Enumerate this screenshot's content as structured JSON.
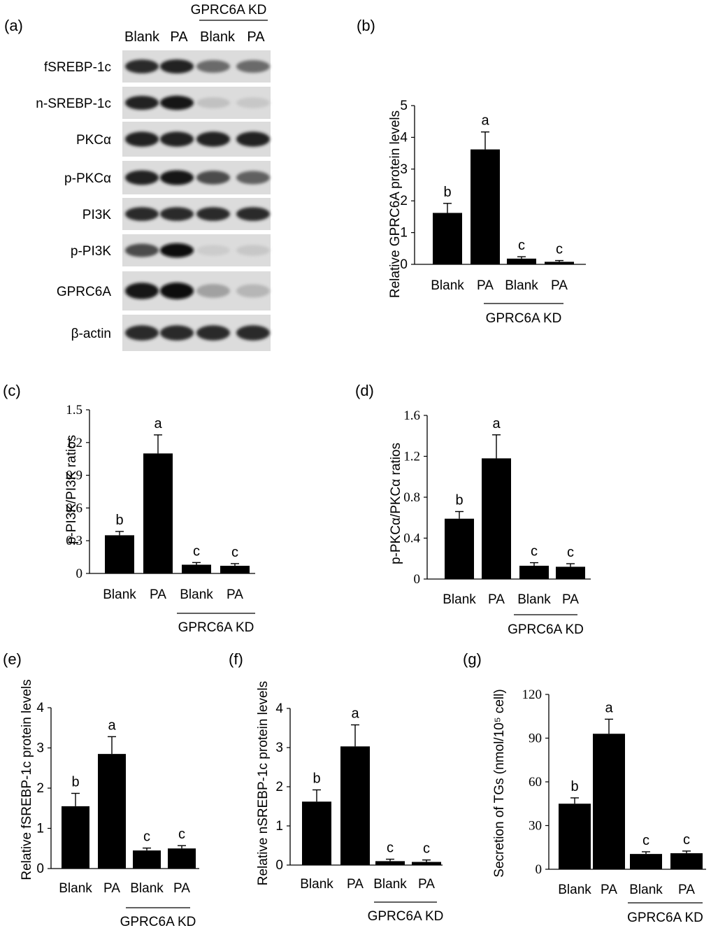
{
  "panel_letters": [
    "(a)",
    "(b)",
    "(c)",
    "(d)",
    "(e)",
    "(f)",
    "(g)"
  ],
  "group_label": "GPRC6A KD",
  "blot": {
    "lane_labels": [
      "Blank",
      "PA",
      "Blank",
      "PA"
    ],
    "rows": [
      {
        "label": "fSREBP-1c",
        "intensity": [
          0.85,
          0.9,
          0.55,
          0.55
        ]
      },
      {
        "label": "n-SREBP-1c",
        "intensity": [
          0.9,
          0.95,
          0.15,
          0.12
        ]
      },
      {
        "label": "PKCα",
        "intensity": [
          0.9,
          0.9,
          0.9,
          0.9
        ]
      },
      {
        "label": "p-PKCα",
        "intensity": [
          0.9,
          0.95,
          0.7,
          0.6
        ]
      },
      {
        "label": "PI3K",
        "intensity": [
          0.85,
          0.85,
          0.85,
          0.85
        ]
      },
      {
        "label": "p-PI3K",
        "intensity": [
          0.7,
          0.98,
          0.1,
          0.12
        ]
      },
      {
        "label": "GPRC6A",
        "intensity": [
          0.95,
          1.0,
          0.3,
          0.2
        ]
      },
      {
        "label": "β-actin",
        "intensity": [
          0.85,
          0.85,
          0.85,
          0.85
        ]
      }
    ]
  },
  "chart_data": [
    {
      "panel": "(b)",
      "type": "bar",
      "categories": [
        "Blank",
        "PA",
        "Blank",
        "PA"
      ],
      "values": [
        1.62,
        3.62,
        0.18,
        0.08
      ],
      "errors": [
        0.3,
        0.55,
        0.06,
        0.04
      ],
      "letters": [
        "b",
        "a",
        "c",
        "c"
      ],
      "ylabel": "Relative GPRC6A protein levels",
      "ylim": [
        0,
        5
      ],
      "yticks": [
        "0",
        "1",
        "2",
        "3",
        "4",
        "5"
      ],
      "group_label": "GPRC6A KD",
      "tick_font": "sans"
    },
    {
      "panel": "(c)",
      "type": "bar",
      "categories": [
        "Blank",
        "PA",
        "Blank",
        "PA"
      ],
      "values": [
        0.35,
        1.1,
        0.08,
        0.07
      ],
      "errors": [
        0.035,
        0.17,
        0.02,
        0.02
      ],
      "letters": [
        "b",
        "a",
        "c",
        "c"
      ],
      "ylabel": "p-PI3K/PI3K ratios",
      "ylim": [
        0,
        1.5
      ],
      "yticks": [
        "0",
        "0.3",
        "0.6",
        "0.9",
        "1.2",
        "1.5"
      ],
      "group_label": "GPRC6A KD",
      "tick_font": "serif"
    },
    {
      "panel": "(d)",
      "type": "bar",
      "categories": [
        "Blank",
        "PA",
        "Blank",
        "PA"
      ],
      "values": [
        0.59,
        1.18,
        0.13,
        0.12
      ],
      "errors": [
        0.07,
        0.23,
        0.03,
        0.03
      ],
      "letters": [
        "b",
        "a",
        "c",
        "c"
      ],
      "ylabel": "p-PKCα/PKCα ratios",
      "ylim": [
        0,
        1.6
      ],
      "yticks": [
        "0",
        "0.4",
        "0.8",
        "1.2",
        "1.6"
      ],
      "group_label": "GPRC6A KD",
      "tick_font": "serif"
    },
    {
      "panel": "(e)",
      "type": "bar",
      "categories": [
        "Blank",
        "PA",
        "Blank",
        "PA"
      ],
      "values": [
        1.55,
        2.85,
        0.45,
        0.5
      ],
      "errors": [
        0.32,
        0.43,
        0.06,
        0.07
      ],
      "letters": [
        "b",
        "a",
        "c",
        "c"
      ],
      "ylabel": "Relative fSREBP-1c protein levels",
      "ylim": [
        0,
        4
      ],
      "yticks": [
        "0",
        "1",
        "2",
        "3",
        "4"
      ],
      "group_label": "GPRC6A KD",
      "tick_font": "sans"
    },
    {
      "panel": "(f)",
      "type": "bar",
      "categories": [
        "Blank",
        "PA",
        "Blank",
        "PA"
      ],
      "values": [
        1.62,
        3.03,
        0.1,
        0.08
      ],
      "errors": [
        0.3,
        0.55,
        0.05,
        0.05
      ],
      "letters": [
        "b",
        "a",
        "c",
        "c"
      ],
      "ylabel": "Relative nSREBP-1c protein levels",
      "ylim": [
        0,
        4
      ],
      "yticks": [
        "0",
        "1",
        "2",
        "3",
        "4"
      ],
      "group_label": "GPRC6A KD",
      "tick_font": "sans"
    },
    {
      "panel": "(g)",
      "type": "bar",
      "categories": [
        "Blank",
        "PA",
        "Blank",
        "PA"
      ],
      "values": [
        45,
        93,
        10.5,
        11
      ],
      "errors": [
        4,
        10,
        1.5,
        1.5
      ],
      "letters": [
        "b",
        "a",
        "c",
        "c"
      ],
      "ylabel": "Secretion of TGs (nmol/10⁵ cell)",
      "ylim": [
        0,
        120
      ],
      "yticks": [
        "0",
        "30",
        "60",
        "90",
        "120"
      ],
      "group_label": "GPRC6A KD",
      "tick_font": "serif"
    }
  ]
}
